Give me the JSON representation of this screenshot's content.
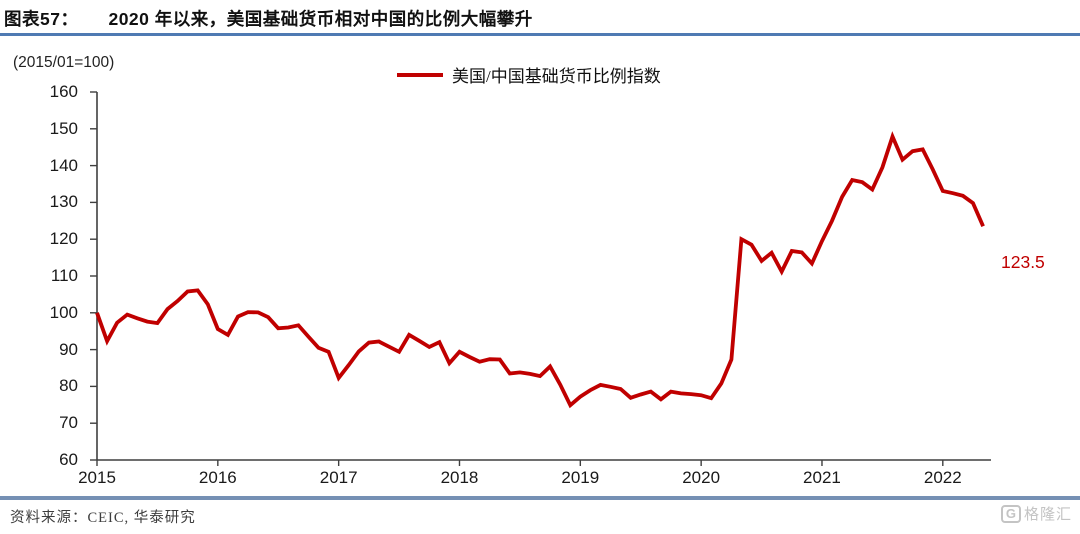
{
  "figure": {
    "label": "图表57：",
    "title": "2020 年以来，美国基础货币相对中国的比例大幅攀升"
  },
  "chart_data": {
    "type": "line",
    "title": "美国/中国基础货币比例指数",
    "unit_note": "(2015/01=100)",
    "legend": [
      "美国/中国基础货币比例指数"
    ],
    "legend_position": "top-center",
    "line_color": "#C00000",
    "grid": false,
    "ylim": [
      60,
      160
    ],
    "y_ticks": [
      160,
      150,
      140,
      130,
      120,
      110,
      100,
      90,
      80,
      70,
      60
    ],
    "x_tick_labels": [
      "2015",
      "2016",
      "2017",
      "2018",
      "2019",
      "2020",
      "2021",
      "2022"
    ],
    "x_start": "2015-01",
    "x_freq": "monthly",
    "end_label": "123.5",
    "series": [
      {
        "name": "美国/中国基础货币比例指数",
        "values": [
          100.0,
          92.3,
          97.3,
          99.5,
          98.5,
          97.6,
          97.2,
          101.0,
          103.2,
          105.8,
          106.1,
          102.3,
          95.6,
          94.0,
          99.0,
          100.2,
          100.1,
          98.8,
          95.8,
          96.0,
          96.6,
          93.5,
          90.5,
          89.4,
          82.3,
          85.8,
          89.5,
          91.9,
          92.2,
          90.8,
          89.4,
          94.0,
          92.4,
          90.7,
          92.0,
          86.3,
          89.4,
          88.0,
          86.7,
          87.4,
          87.3,
          83.5,
          83.8,
          83.4,
          82.8,
          85.4,
          80.5,
          74.9,
          77.2,
          79.0,
          80.4,
          79.9,
          79.3,
          76.9,
          77.8,
          78.6,
          76.5,
          78.6,
          78.1,
          77.9,
          77.6,
          76.8,
          80.8,
          87.3,
          120.0,
          118.5,
          114.1,
          116.3,
          111.2,
          116.8,
          116.4,
          113.4,
          119.5,
          125.0,
          131.5,
          136.1,
          135.5,
          133.5,
          139.5,
          147.9,
          141.6,
          143.9,
          144.4,
          139.0,
          133.1,
          132.5,
          131.8,
          129.8,
          123.5
        ]
      }
    ]
  },
  "footer": {
    "source": "资料来源：CEIC, 华泰研究",
    "logo_glyph": "G",
    "logo_text": "格隆汇"
  },
  "colors": {
    "accent_red": "#C00000",
    "rule_blue": "#4f7ab3",
    "footer_rule_blue": "#7590b4",
    "axis": "#3f3f3f"
  }
}
